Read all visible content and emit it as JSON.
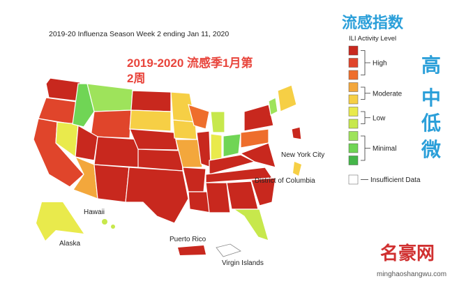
{
  "header": {
    "title": "2019-20 Influenza Season Week 2 ending Jan 11, 2020"
  },
  "annotation": {
    "lines": [
      "2019-2020 流感季1月第",
      "2周"
    ]
  },
  "side_title": "流感指数",
  "side_label": [
    "高",
    "中",
    "低",
    "微"
  ],
  "legend": {
    "title": "ILI Activity Level",
    "levels": [
      {
        "color": "#c8281e"
      },
      {
        "color": "#e0452b"
      },
      {
        "color": "#ee6e2c"
      },
      {
        "color": "#f3a73c"
      },
      {
        "color": "#f6cf45"
      },
      {
        "color": "#e9ea4c"
      },
      {
        "color": "#c7e84c"
      },
      {
        "color": "#9ee35b"
      },
      {
        "color": "#70d555"
      },
      {
        "color": "#45b649"
      }
    ],
    "groups": [
      {
        "label": "High",
        "levels": [
          0,
          2
        ]
      },
      {
        "label": "Moderate",
        "levels": [
          3,
          4
        ]
      },
      {
        "label": "Low",
        "levels": [
          5,
          6
        ]
      },
      {
        "label": "Minimal",
        "levels": [
          7,
          9
        ]
      }
    ],
    "insufficient": {
      "label": "Insufficient Data",
      "color": "#ffffff"
    }
  },
  "map_labels": [
    "New York City",
    "District of Columbia",
    "Hawaii",
    "Alaska",
    "Puerto Rico",
    "Virgin Islands"
  ],
  "watermark": {
    "name": "名豪网",
    "url": "minghaoshangwu.com"
  }
}
